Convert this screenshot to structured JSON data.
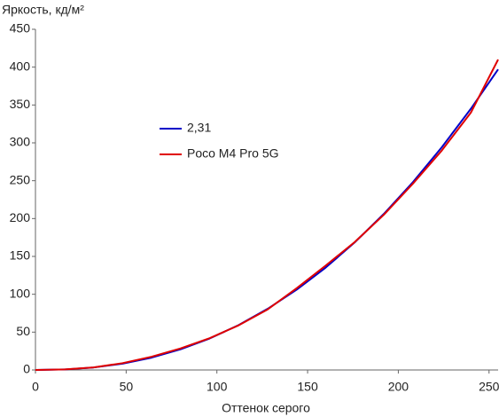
{
  "chart_data": {
    "type": "line",
    "y_label": "Яркость, кд/м²",
    "x_label": "Оттенок серого",
    "x": [
      0,
      16,
      32,
      48,
      64,
      80,
      96,
      112,
      128,
      144,
      160,
      176,
      192,
      208,
      224,
      240,
      255
    ],
    "series": [
      {
        "name": "2,31",
        "color": "#0000c8",
        "values": [
          0,
          0.66,
          3.29,
          8.38,
          16.3,
          27.3,
          41.6,
          59.3,
          80.8,
          106.1,
          135.3,
          168.6,
          206.1,
          248.0,
          294.3,
          345.1,
          397
        ]
      },
      {
        "name": "Poco M4 Pro 5G",
        "color": "#e00000",
        "values": [
          0,
          0.7,
          3.4,
          9,
          17.5,
          28.5,
          42,
          59,
          80,
          108,
          138,
          169,
          205,
          246,
          290,
          340,
          410
        ]
      }
    ],
    "xlim": [
      0,
      255
    ],
    "xticks": [
      0,
      50,
      100,
      150,
      200,
      250
    ],
    "ylim": [
      0,
      450
    ],
    "yticks": [
      0,
      50,
      100,
      150,
      200,
      250,
      300,
      350,
      400,
      450
    ],
    "grid": false
  }
}
